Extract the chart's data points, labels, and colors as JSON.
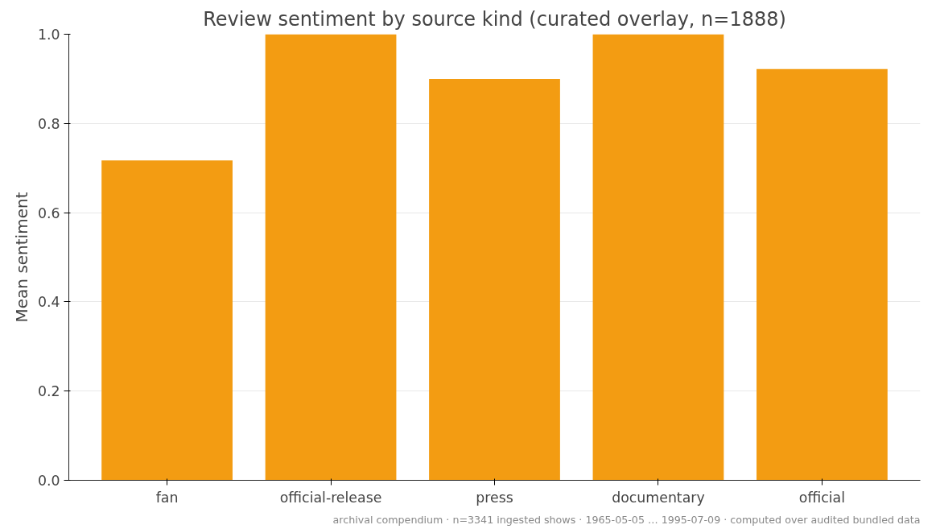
{
  "chart_data": {
    "type": "bar",
    "title": "Review sentiment by source kind (curated overlay, n=1888)",
    "ylabel": "Mean sentiment",
    "categories": [
      "fan",
      "official-release",
      "press",
      "documentary",
      "official"
    ],
    "values": [
      0.717,
      1.0,
      0.9,
      1.0,
      0.922
    ],
    "color": "#f39c12",
    "ylim": [
      0,
      1
    ],
    "yticks": [
      {
        "value": 0,
        "label": "0.0"
      },
      {
        "value": 0.2,
        "label": "0.2"
      },
      {
        "value": 0.4,
        "label": "0.4"
      },
      {
        "value": 0.6,
        "label": "0.6"
      },
      {
        "value": 0.8,
        "label": "0.8"
      },
      {
        "value": 1,
        "label": "1.0"
      }
    ],
    "grid": "y",
    "annotations": [
      "archival compendium · n=3341 ingested shows · 1965-05-05 … 1995-07-09 · computed over audited bundled data"
    ]
  }
}
